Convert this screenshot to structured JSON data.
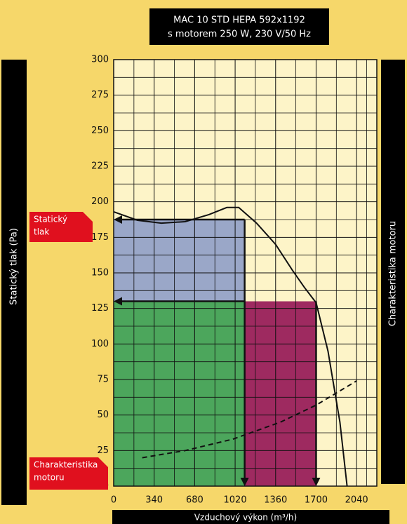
{
  "chart_data": {
    "type": "line",
    "title": "MAC 10 STD HEPA 592x1192",
    "subtitle": "s motorem 250 W, 230 V/50 Hz",
    "xlabel": "Vzduchový výkon (m³/h)",
    "ylabel": "Statický tlak (Pa)",
    "right_label": "Charakteristika motoru",
    "annotations": [
      {
        "lines": [
          "Statický",
          "tlak"
        ]
      },
      {
        "lines": [
          "Charakteristika",
          "motoru"
        ]
      }
    ],
    "xlim": [
      0,
      2210
    ],
    "ylim": [
      0,
      300
    ],
    "xticks": [
      0,
      340,
      680,
      1020,
      1360,
      1700,
      2040
    ],
    "yticks": [
      0,
      25,
      50,
      75,
      100,
      125,
      150,
      175,
      200,
      225,
      250,
      275,
      300
    ],
    "grid": true,
    "static_flow": 1100,
    "static_level": 187.5,
    "motor_flow": 1700,
    "motor_level": 130,
    "region_colors": [
      "#9aa7c8",
      "#4ca65c",
      "#9e2a60"
    ],
    "series": [
      {
        "color": "#111111",
        "style": "solid",
        "x": [
          0,
          200,
          400,
          600,
          800,
          950,
          1050,
          1200,
          1360,
          1500,
          1600,
          1700,
          1800,
          1900,
          1960
        ],
        "values": [
          193,
          187,
          185,
          186,
          191,
          196,
          196,
          185,
          170,
          152,
          140,
          129,
          95,
          45,
          0
        ]
      },
      {
        "color": "#111111",
        "style": "dashed",
        "x": [
          240,
          600,
          1000,
          1400,
          1700,
          2040
        ],
        "values": [
          20,
          25,
          33,
          45,
          57,
          74
        ]
      }
    ]
  }
}
